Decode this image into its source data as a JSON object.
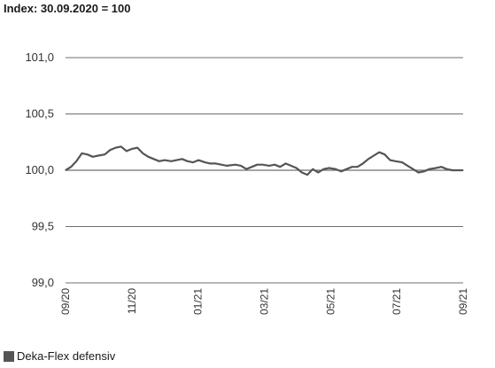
{
  "chart_data": {
    "type": "line",
    "title": "Index: 30.09.2020 = 100",
    "xlabel": "",
    "ylabel": "",
    "ylim": [
      99.0,
      101.0
    ],
    "yticks": [
      "101,0",
      "100,5",
      "100,0",
      "99,5",
      "99,0"
    ],
    "yticks_values": [
      101.0,
      100.5,
      100.0,
      99.5,
      99.0
    ],
    "x_tick_labels": [
      "09/20",
      "11/20",
      "01/21",
      "03/21",
      "05/21",
      "07/21",
      "09/21"
    ],
    "x_range": [
      "2020-09-30",
      "2021-09-30"
    ],
    "grid": "horizontal",
    "reference_line": 100.0,
    "legend_position": "bottom-left",
    "series": [
      {
        "name": "Deka-Flex defensiv",
        "color": "#555555",
        "x": [
          "2020-09-30",
          "2020-10-05",
          "2020-10-10",
          "2020-10-15",
          "2020-10-20",
          "2020-10-25",
          "2020-10-30",
          "2020-11-05",
          "2020-11-10",
          "2020-11-15",
          "2020-11-20",
          "2020-11-25",
          "2020-11-30",
          "2020-12-05",
          "2020-12-10",
          "2020-12-15",
          "2020-12-20",
          "2020-12-25",
          "2020-12-30",
          "2021-01-05",
          "2021-01-10",
          "2021-01-15",
          "2021-01-20",
          "2021-01-25",
          "2021-01-30",
          "2021-02-05",
          "2021-02-10",
          "2021-02-15",
          "2021-02-20",
          "2021-02-25",
          "2021-03-05",
          "2021-03-10",
          "2021-03-15",
          "2021-03-20",
          "2021-03-25",
          "2021-03-30",
          "2021-04-05",
          "2021-04-10",
          "2021-04-15",
          "2021-04-20",
          "2021-04-25",
          "2021-04-30",
          "2021-05-05",
          "2021-05-10",
          "2021-05-15",
          "2021-05-20",
          "2021-05-25",
          "2021-05-30",
          "2021-06-05",
          "2021-06-10",
          "2021-06-15",
          "2021-06-20",
          "2021-06-25",
          "2021-06-30",
          "2021-07-05",
          "2021-07-10",
          "2021-07-15",
          "2021-07-20",
          "2021-07-25",
          "2021-07-30",
          "2021-08-05",
          "2021-08-10",
          "2021-08-15",
          "2021-08-20",
          "2021-08-25",
          "2021-08-30",
          "2021-09-05",
          "2021-09-10",
          "2021-09-15",
          "2021-09-20",
          "2021-09-25",
          "2021-09-30"
        ],
        "y": [
          100.0,
          100.03,
          100.08,
          100.15,
          100.14,
          100.12,
          100.13,
          100.14,
          100.18,
          100.2,
          100.21,
          100.17,
          100.19,
          100.2,
          100.15,
          100.12,
          100.1,
          100.08,
          100.09,
          100.08,
          100.09,
          100.1,
          100.08,
          100.07,
          100.09,
          100.07,
          100.06,
          100.06,
          100.05,
          100.04,
          100.05,
          100.04,
          100.01,
          100.03,
          100.05,
          100.05,
          100.04,
          100.05,
          100.03,
          100.06,
          100.04,
          100.02,
          99.98,
          99.96,
          100.01,
          99.98,
          100.01,
          100.02,
          100.01,
          99.99,
          100.01,
          100.03,
          100.03,
          100.06,
          100.1,
          100.13,
          100.16,
          100.14,
          100.09,
          100.08,
          100.07,
          100.04,
          100.01,
          99.98,
          99.99,
          100.01,
          100.02,
          100.03,
          100.01,
          100.0,
          100.0,
          100.0
        ]
      }
    ]
  }
}
